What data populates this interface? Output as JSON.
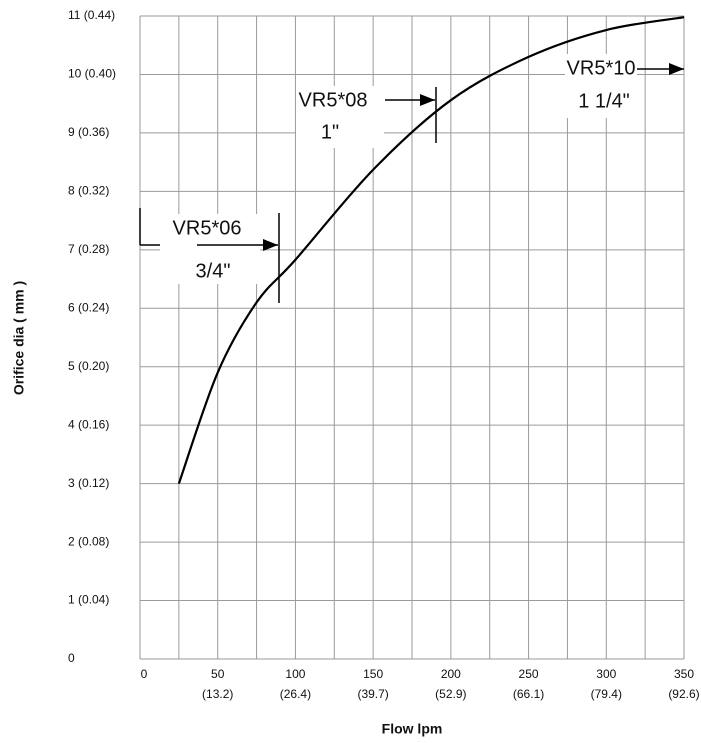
{
  "chart_data": {
    "type": "line",
    "x_label": "Flow  lpm",
    "y_label": "Orifice dia ( mm )",
    "xlim": [
      0,
      350
    ],
    "ylim": [
      0,
      11
    ],
    "xticks": [
      0,
      50,
      100,
      150,
      200,
      250,
      300,
      350
    ],
    "xtick_sublabels": [
      null,
      "(13.2)",
      "(26.4)",
      "(39.7)",
      "(52.9)",
      "(66.1)",
      "(79.4)",
      "(92.6)"
    ],
    "x_minor_gridlines": [
      25,
      75,
      125,
      175,
      225,
      275,
      325
    ],
    "yticks": [
      {
        "value": 0,
        "label": "0"
      },
      {
        "value": 1,
        "label": "1  (0.04)"
      },
      {
        "value": 2,
        "label": "2  (0.08)"
      },
      {
        "value": 3,
        "label": "3  (0.12)"
      },
      {
        "value": 4,
        "label": "4  (0.16)"
      },
      {
        "value": 5,
        "label": "5  (0.20)"
      },
      {
        "value": 6,
        "label": "6  (0.24)"
      },
      {
        "value": 7,
        "label": "7  (0.28)"
      },
      {
        "value": 8,
        "label": "8  (0.32)"
      },
      {
        "value": 9,
        "label": "9  (0.36)"
      },
      {
        "value": 10,
        "label": "10 (0.40)"
      },
      {
        "value": 11,
        "label": "11 (0.44)"
      }
    ],
    "grid": true,
    "series": [
      {
        "color": "#000000",
        "x": [
          25,
          50,
          75,
          100,
          150,
          200,
          250,
          300,
          350
        ],
        "values": [
          3,
          4.9,
          6.1,
          6.83,
          8.37,
          9.56,
          10.3,
          10.76,
          10.98
        ]
      }
    ],
    "annotations": [
      "VR5*06",
      "3/4\"",
      "VR5*08",
      "1\"",
      "VR5*10",
      "1 1/4\""
    ]
  }
}
